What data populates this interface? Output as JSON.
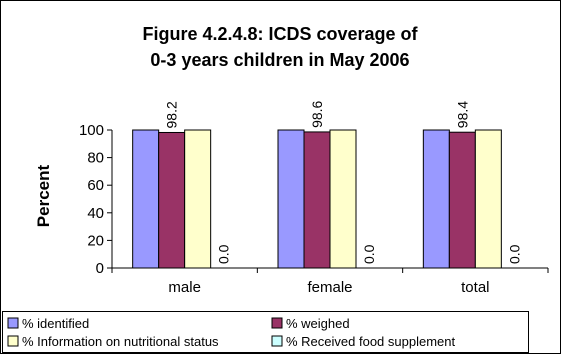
{
  "chart_data": {
    "type": "bar",
    "title_lines": [
      "Figure 4.2.4.8:  ICDS coverage of",
      "0-3 years children in May 2006"
    ],
    "ylabel": "Percent",
    "xlabel": "",
    "ylim": [
      0,
      100
    ],
    "yticks": [
      "0",
      "20",
      "40",
      "60",
      "80",
      "100"
    ],
    "categories": [
      "male",
      "female",
      "total"
    ],
    "series": [
      {
        "name": "% identified",
        "values": [
          100,
          100,
          100
        ],
        "color": "#9999ff"
      },
      {
        "name": "% weighed",
        "values": [
          98.2,
          98.6,
          98.4
        ],
        "color": "#993366",
        "labels": [
          "98.2",
          "98.6",
          "98.4"
        ]
      },
      {
        "name": "% Information on nutritional status",
        "values": [
          100,
          100,
          100
        ],
        "color": "#ffffcc"
      },
      {
        "name": "% Received food supplement",
        "values": [
          0,
          0,
          0
        ],
        "color": "#ccffff",
        "labels": [
          "0.0",
          "0.0",
          "0.0"
        ]
      }
    ],
    "grid": false,
    "legend_position": "bottom"
  }
}
